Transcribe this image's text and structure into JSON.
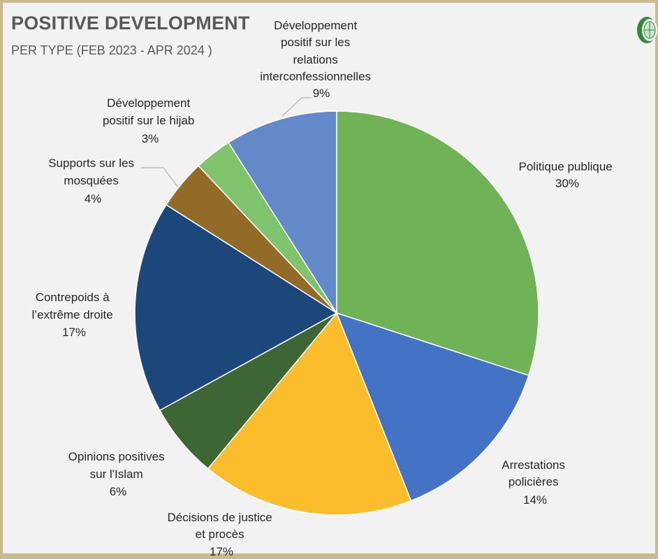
{
  "header": {
    "title": "POSITIVE DEVELOPMENT",
    "subtitle": "PER TYPE (FEB 2023 - APR 2024 )"
  },
  "logo": {
    "icon": "crescent-globe-logo-icon",
    "color": "#2e8b3a"
  },
  "chart_data": {
    "type": "pie",
    "title": "POSITIVE DEVELOPMENT",
    "subtitle": "PER TYPE (FEB 2023 - APR 2024 )",
    "start_angle_deg": 0,
    "direction": "clockwise",
    "slices": [
      {
        "label": "Politique publique",
        "value": 30,
        "value_label": "30%",
        "color": "#70b356"
      },
      {
        "label": "Arrestations policières",
        "value": 14,
        "value_label": "14%",
        "color": "#4472c4"
      },
      {
        "label": "Décisions de justice et procès",
        "value": 17,
        "value_label": "17%",
        "color": "#fbbd2b"
      },
      {
        "label": "Opinions positives sur l'Islam",
        "value": 6,
        "value_label": "6%",
        "color": "#3e6634"
      },
      {
        "label": "Contrepoids à l’extrême droite",
        "value": 17,
        "value_label": "17%",
        "color": "#1b477a"
      },
      {
        "label": "Supports sur les mosquées",
        "value": 4,
        "value_label": "4%",
        "color": "#926b26"
      },
      {
        "label": "Développement positif sur le hijab",
        "value": 3,
        "value_label": "3%",
        "color": "#7fc46c"
      },
      {
        "label": "Développement positif sur les relations interconfessionnelles",
        "value": 9,
        "value_label": "9%",
        "color": "#6389c8"
      }
    ]
  }
}
